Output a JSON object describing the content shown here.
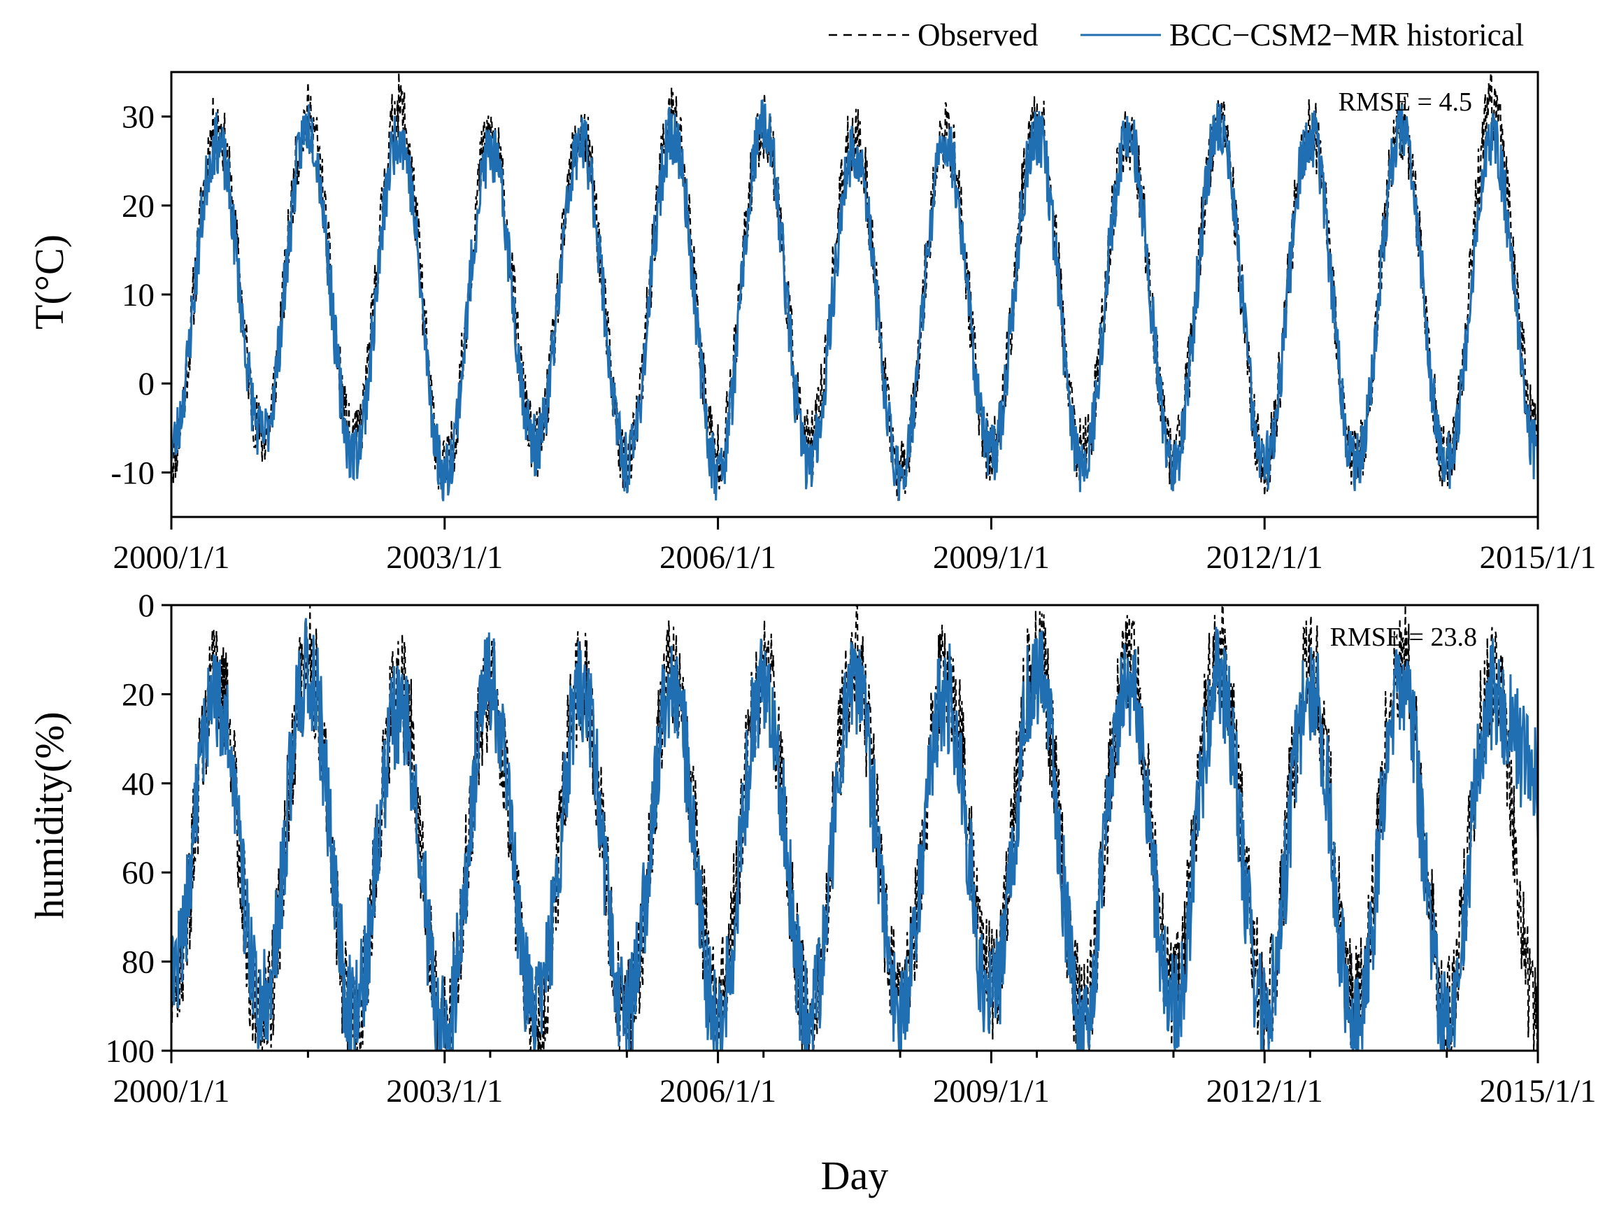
{
  "colors": {
    "observed": "#000000",
    "model": "#1f6fb2"
  },
  "legend": [
    {
      "name": "Observed",
      "style": "dashed"
    },
    {
      "name": "BCC−CSM2−MR historical",
      "style": "solid"
    }
  ],
  "xlabel": "Day",
  "chart_data": [
    {
      "type": "line",
      "id": "temperature",
      "ylabel": "T(°C)",
      "ylim": [
        -15,
        35
      ],
      "yticks": [
        "30",
        "20",
        "10",
        "0",
        "-10"
      ],
      "ytick_values": [
        30,
        20,
        10,
        0,
        -10
      ],
      "y_inverted": false,
      "x_range": [
        2000,
        2015
      ],
      "xticks": [
        "2000/1/1",
        "2003/1/1",
        "2006/1/1",
        "2009/1/1",
        "2012/1/1",
        "2015/1/1"
      ],
      "xtick_values": [
        2000,
        2003,
        2006,
        2009,
        2012,
        2015
      ],
      "annotation": "RMSE = 4.5",
      "series": [
        {
          "name": "Observed",
          "seasonal": {
            "mean": 10,
            "amplitude": 16,
            "noise": 4,
            "seed": 11
          },
          "x": [
            2000,
            2000.5,
            2001,
            2001.5,
            2002,
            2002.5,
            2003,
            2003.5,
            2004,
            2004.5,
            2005,
            2005.5,
            2006,
            2006.5,
            2007,
            2007.5,
            2008,
            2008.5,
            2009,
            2009.5,
            2010,
            2010.5,
            2011,
            2011.5,
            2012,
            2012.5,
            2013,
            2013.5,
            2014,
            2014.5,
            2015
          ],
          "values": [
            -8,
            29,
            -6,
            30,
            -7,
            31,
            -10,
            28,
            -7,
            28,
            -9,
            30,
            -8,
            29,
            -7,
            28,
            -10,
            28,
            -8,
            30,
            -8,
            28,
            -8,
            29,
            -9,
            29,
            -9,
            29,
            -9,
            31,
            -6
          ]
        },
        {
          "name": "BCC−CSM2−MR historical",
          "seasonal": {
            "mean": 9,
            "amplitude": 15,
            "noise": 3.5,
            "seed": 23
          },
          "x": [
            2000,
            2000.5,
            2001,
            2001.5,
            2002,
            2002.5,
            2003,
            2003.5,
            2004,
            2004.5,
            2005,
            2005.5,
            2006,
            2006.5,
            2007,
            2007.5,
            2008,
            2008.5,
            2009,
            2009.5,
            2010,
            2010.5,
            2011,
            2011.5,
            2012,
            2012.5,
            2013,
            2013.5,
            2014,
            2014.5,
            2015
          ],
          "values": [
            -7,
            27,
            -6,
            29,
            -8,
            28,
            -10,
            26,
            -7,
            27,
            -9,
            28,
            -10,
            29,
            -9,
            26,
            -10,
            27,
            -8,
            28,
            -9,
            28,
            -9,
            29,
            -9,
            28,
            -9,
            28,
            -9,
            27,
            -8
          ]
        }
      ]
    },
    {
      "type": "line",
      "id": "humidity",
      "ylabel": "humidity(%)",
      "ylim": [
        0,
        100
      ],
      "yticks": [
        "0",
        "20",
        "40",
        "60",
        "80",
        "100"
      ],
      "ytick_values": [
        0,
        20,
        40,
        60,
        80,
        100
      ],
      "y_inverted": true,
      "x_range": [
        2000,
        2015
      ],
      "xticks": [
        "2000/1/1",
        "2003/1/1",
        "2006/1/1",
        "2009/1/1",
        "2012/1/1",
        "2015/1/1"
      ],
      "xtick_values": [
        2000,
        2003,
        2006,
        2009,
        2012,
        2015
      ],
      "minor_xtick_values": [
        2001.5,
        2003.5,
        2005.0,
        2006.5,
        2008.0,
        2009.5,
        2011.0,
        2012.5,
        2014.0
      ],
      "annotation": "RMSE = 23.8",
      "series": [
        {
          "name": "Observed",
          "seasonal": {
            "mean": 58,
            "amplitude": 16,
            "noise": 14,
            "seed": 37
          },
          "x": [
            2000,
            2000.5,
            2001,
            2001.5,
            2002,
            2002.5,
            2003,
            2003.5,
            2004,
            2004.5,
            2005,
            2005.5,
            2006,
            2006.5,
            2007,
            2007.5,
            2008,
            2008.5,
            2009,
            2009.5,
            2010,
            2010.5,
            2011,
            2011.5,
            2012,
            2012.5,
            2013,
            2013.5,
            2014,
            2014.5,
            2015
          ],
          "values": [
            90,
            15,
            95,
            12,
            95,
            18,
            93,
            20,
            97,
            17,
            93,
            16,
            88,
            14,
            92,
            13,
            90,
            15,
            85,
            11,
            92,
            14,
            87,
            10,
            88,
            13,
            90,
            12,
            92,
            16,
            95
          ]
        },
        {
          "name": "BCC−CSM2−MR historical",
          "seasonal": {
            "mean": 62,
            "amplitude": 14,
            "noise": 13,
            "seed": 53
          },
          "x": [
            2000,
            2000.5,
            2001,
            2001.5,
            2002,
            2002.5,
            2003,
            2003.5,
            2004,
            2004.5,
            2005,
            2005.5,
            2006,
            2006.5,
            2007,
            2007.5,
            2008,
            2008.5,
            2009,
            2009.5,
            2010,
            2010.5,
            2011,
            2011.5,
            2012,
            2012.5,
            2013,
            2013.5,
            2014,
            2014.5,
            2015
          ],
          "values": [
            85,
            20,
            90,
            14,
            92,
            24,
            94,
            18,
            93,
            20,
            92,
            18,
            94,
            17,
            92,
            18,
            91,
            20,
            90,
            14,
            92,
            16,
            90,
            16,
            92,
            18,
            94,
            17,
            94,
            20,
            40
          ]
        }
      ]
    }
  ]
}
